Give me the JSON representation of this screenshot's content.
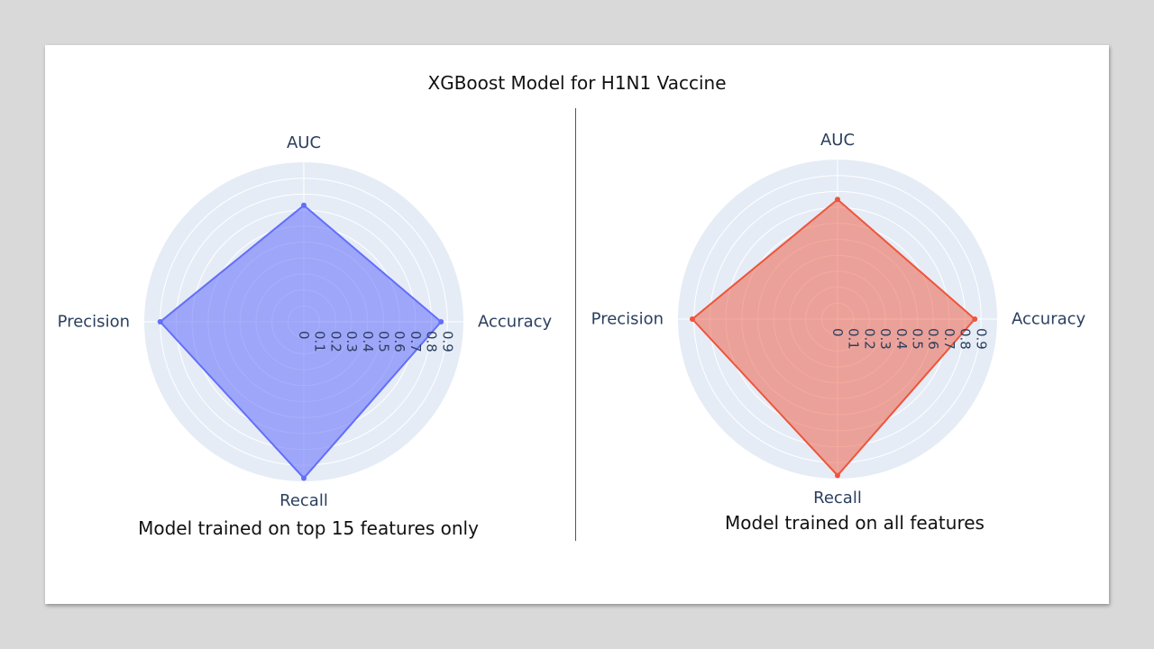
{
  "title": "XGBoost Model for H1N1 Vaccine",
  "chart_data": [
    {
      "type": "radar",
      "name": "Model trained on top 15 features only",
      "categories": [
        "Accuracy",
        "AUC",
        "Precision",
        "Recall"
      ],
      "values": [
        0.86,
        0.73,
        0.9,
        0.98
      ],
      "radial_ticks": [
        "0",
        "0.1",
        "0.2",
        "0.3",
        "0.4",
        "0.5",
        "0.6",
        "0.7",
        "0.8",
        "0.9"
      ],
      "range": [
        0,
        1
      ],
      "color": "#636efa",
      "fill": "rgba(99,110,250,0.55)"
    },
    {
      "type": "radar",
      "name": "Model trained on all features",
      "categories": [
        "Accuracy",
        "AUC",
        "Precision",
        "Recall"
      ],
      "values": [
        0.86,
        0.75,
        0.91,
        0.98
      ],
      "radial_ticks": [
        "0",
        "0.1",
        "0.2",
        "0.3",
        "0.4",
        "0.5",
        "0.6",
        "0.7",
        "0.8",
        "0.9"
      ],
      "range": [
        0,
        1
      ],
      "color": "#ef553b",
      "fill": "rgba(239,85,59,0.5)"
    }
  ]
}
